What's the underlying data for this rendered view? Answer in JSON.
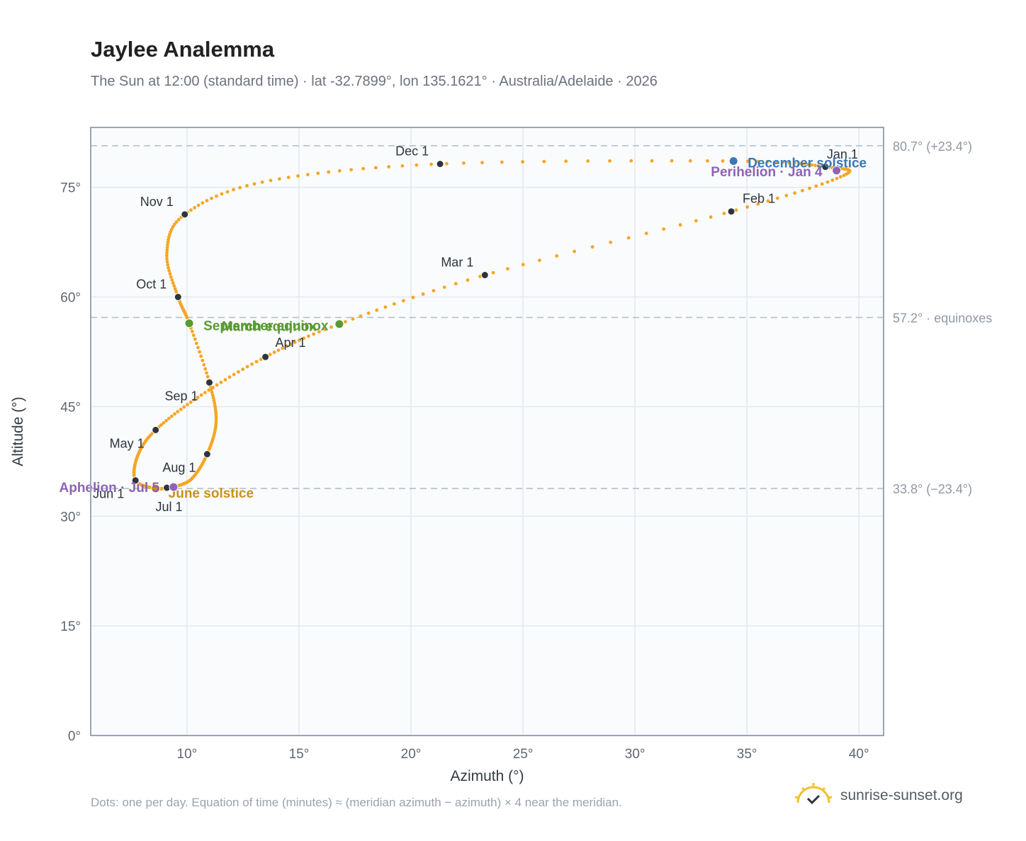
{
  "header": {
    "title": "Jaylee Analemma",
    "subtitle": "The Sun at 12:00 (standard time) · lat -32.7899°, lon 135.1621° · Australia/Adelaide · 2026"
  },
  "footer": {
    "note": "Dots: one per day. Equation of time (minutes) ≈ (meridian azimuth − azimuth) × 4 near the meridian.",
    "brand": "sunrise-sunset.org"
  },
  "colors": {
    "path": "#f5a623",
    "month_marker": "#2f343b",
    "equinox": "#5a9a32",
    "solstice_december": "#3a78b5",
    "solstice_june": "#c9921a",
    "apsis": "#8e63b5",
    "reference_line": "#b8c0c8",
    "plot_background": "#f9fbfd",
    "grid": "#e3e9ef"
  },
  "chart_data": {
    "type": "scatter",
    "xlabel": "Azimuth (°)",
    "ylabel": "Altitude (°)",
    "xlim": [
      5.7,
      41.1
    ],
    "ylim": [
      0,
      83.2
    ],
    "x_ticks": [
      10,
      15,
      20,
      25,
      30,
      35,
      40
    ],
    "x_tick_labels": [
      "10°",
      "15°",
      "20°",
      "25°",
      "30°",
      "35°",
      "40°"
    ],
    "y_ticks": [
      0,
      15,
      30,
      45,
      60,
      75
    ],
    "y_tick_labels": [
      "0°",
      "15°",
      "30°",
      "45°",
      "60°",
      "75°"
    ],
    "grid": true,
    "path_anchors": [
      {
        "date": "Jan 1",
        "x": 38.5,
        "y": 77.8
      },
      {
        "date": "Jan 15",
        "x": 39.3,
        "y": 76.6
      },
      {
        "date": "Feb 1",
        "x": 34.3,
        "y": 71.7
      },
      {
        "date": "Mar 1",
        "x": 23.3,
        "y": 63.0
      },
      {
        "date": "Mar 20",
        "x": 16.8,
        "y": 56.3
      },
      {
        "date": "Apr 1",
        "x": 13.5,
        "y": 51.8
      },
      {
        "date": "Apr 15",
        "x": 10.6,
        "y": 46.5
      },
      {
        "date": "May 1",
        "x": 8.6,
        "y": 41.8
      },
      {
        "date": "May 15",
        "x": 7.8,
        "y": 38.3
      },
      {
        "date": "Jun 1",
        "x": 7.7,
        "y": 34.9
      },
      {
        "date": "Jun 21",
        "x": 8.6,
        "y": 33.8
      },
      {
        "date": "Jul 1",
        "x": 9.1,
        "y": 33.9
      },
      {
        "date": "Jul 5",
        "x": 9.4,
        "y": 34.0
      },
      {
        "date": "Jul 15",
        "x": 10.2,
        "y": 35.1
      },
      {
        "date": "Aug 1",
        "x": 10.9,
        "y": 38.5
      },
      {
        "date": "Aug 15",
        "x": 11.3,
        "y": 43.0
      },
      {
        "date": "Sep 1",
        "x": 11.0,
        "y": 48.3
      },
      {
        "date": "Sep 23",
        "x": 10.1,
        "y": 56.4
      },
      {
        "date": "Oct 1",
        "x": 9.6,
        "y": 60.0
      },
      {
        "date": "Oct 15",
        "x": 9.1,
        "y": 66.0
      },
      {
        "date": "Nov 1",
        "x": 9.9,
        "y": 71.3
      },
      {
        "date": "Nov 15",
        "x": 13.5,
        "y": 75.8
      },
      {
        "date": "Dec 1",
        "x": 21.3,
        "y": 78.2
      },
      {
        "date": "Dec 21",
        "x": 34.4,
        "y": 78.6
      },
      {
        "date": "Dec 31",
        "x": 38.5,
        "y": 77.8
      }
    ],
    "month_markers": [
      {
        "label": "Jan 1",
        "x": 38.5,
        "y": 77.8
      },
      {
        "label": "Feb 1",
        "x": 34.3,
        "y": 71.7
      },
      {
        "label": "Mar 1",
        "x": 23.3,
        "y": 63.0
      },
      {
        "label": "Apr 1",
        "x": 13.5,
        "y": 51.8
      },
      {
        "label": "May 1",
        "x": 8.6,
        "y": 41.8
      },
      {
        "label": "Jun 1",
        "x": 7.7,
        "y": 34.9
      },
      {
        "label": "Jul 1",
        "x": 9.1,
        "y": 33.9
      },
      {
        "label": "Aug 1",
        "x": 10.9,
        "y": 38.5
      },
      {
        "label": "Sep 1",
        "x": 11.0,
        "y": 48.3
      },
      {
        "label": "Oct 1",
        "x": 9.6,
        "y": 60.0
      },
      {
        "label": "Nov 1",
        "x": 9.9,
        "y": 71.3
      },
      {
        "label": "Dec 1",
        "x": 21.3,
        "y": 78.2
      }
    ],
    "events": [
      {
        "label": "March equinox",
        "x": 16.8,
        "y": 56.3,
        "kind": "equinox"
      },
      {
        "label": "September equinox",
        "x": 10.1,
        "y": 56.4,
        "kind": "equinox"
      },
      {
        "label": "December solstice",
        "x": 34.4,
        "y": 78.6,
        "kind": "solstice_december"
      },
      {
        "label": "June solstice",
        "x": 8.6,
        "y": 33.8,
        "kind": "solstice_june"
      },
      {
        "label": "Perihelion · Jan 4",
        "x": 39.0,
        "y": 77.3,
        "kind": "apsis"
      },
      {
        "label": "Aphelion · Jul 5",
        "x": 9.4,
        "y": 34.0,
        "kind": "apsis"
      }
    ],
    "reference_lines": [
      {
        "y": 80.7,
        "label": "80.7° (+23.4°)"
      },
      {
        "y": 57.2,
        "label": "57.2° · equinoxes"
      },
      {
        "y": 33.8,
        "label": "33.8° (−23.4°)"
      }
    ]
  }
}
